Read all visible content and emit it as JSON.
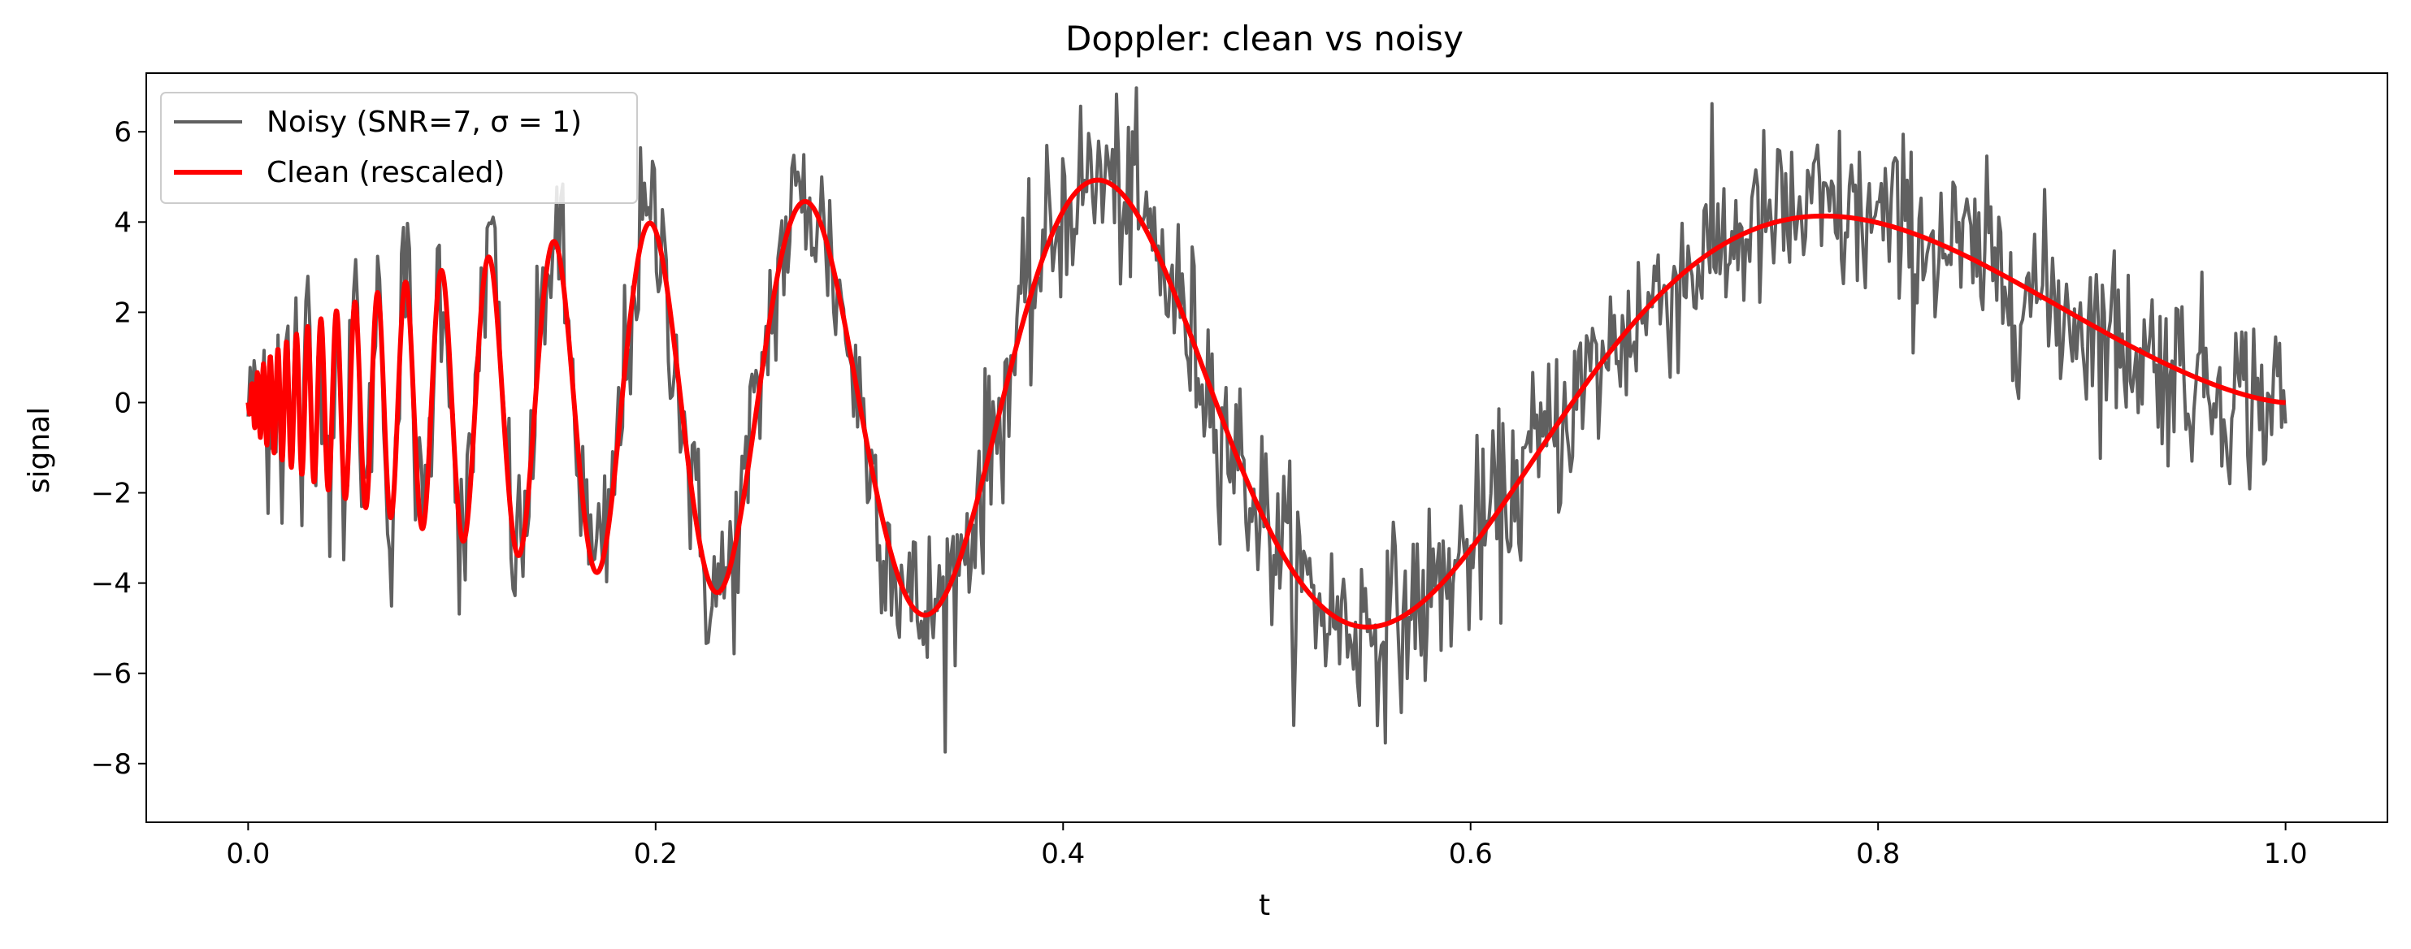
{
  "chart_data": {
    "type": "line",
    "title": "Doppler: clean vs noisy",
    "xlabel": "t",
    "ylabel": "signal",
    "xlim": [
      -0.05,
      1.05
    ],
    "ylim": [
      -9.3,
      7.3
    ],
    "xticks": [
      0.0,
      0.2,
      0.4,
      0.6,
      0.8,
      1.0
    ],
    "xtick_labels": [
      "0.0",
      "0.2",
      "0.4",
      "0.6",
      "0.8",
      "1.0"
    ],
    "yticks": [
      -8,
      -6,
      -4,
      -2,
      0,
      2,
      4,
      6
    ],
    "ytick_labels": [
      "−8",
      "−6",
      "−4",
      "−2",
      "0",
      "2",
      "4",
      "6"
    ],
    "grid": false,
    "legend_position": "top-left",
    "series": [
      {
        "name": "Noisy (SNR=7, σ = 1)",
        "color": "#606060",
        "noise_sigma": 1,
        "x_range": [
          0,
          1
        ],
        "points": 1024
      },
      {
        "name": "Clean (rescaled)",
        "color": "#ff0000",
        "x": [
          0.0,
          0.02,
          0.05,
          0.074,
          0.095,
          0.118,
          0.15,
          0.172,
          0.197,
          0.23,
          0.273,
          0.333,
          0.418,
          0.548,
          0.773,
          1.0
        ],
        "y": [
          -0.4,
          0.8,
          1.5,
          2.0,
          2.2,
          2.5,
          2.8,
          -3.9,
          3.2,
          -4.3,
          3.6,
          -4.7,
          4.1,
          -5.0,
          3.3,
          -0.45
        ]
      }
    ]
  }
}
